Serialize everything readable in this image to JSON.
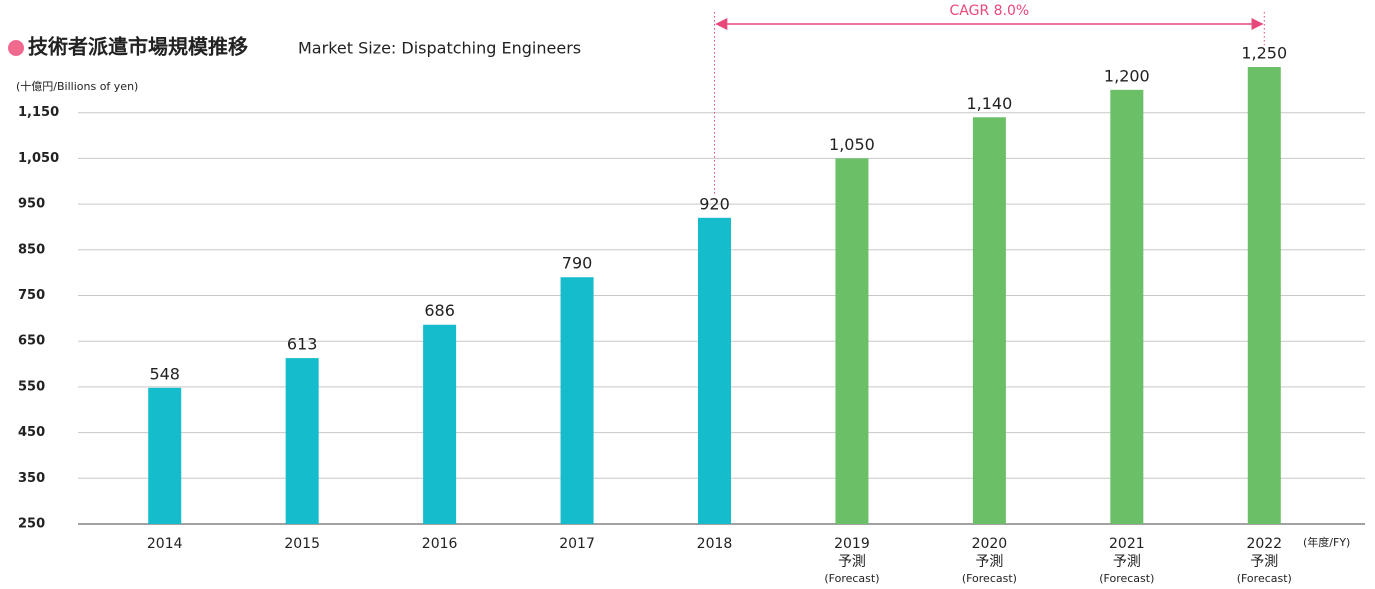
{
  "chart_data": {
    "type": "bar",
    "title": "技術者派遣市場規模推移",
    "subtitle": "Market Size: Dispatching Engineers",
    "y_axis_label": "(十億円/Billions of yen)",
    "x_axis_label": "(年度/FY)",
    "annotation": "CAGR 8.0%",
    "categories": [
      "2014",
      "2015",
      "2016",
      "2017",
      "2018",
      "2019",
      "2020",
      "2021",
      "2022"
    ],
    "forecast_labels": [
      null,
      null,
      null,
      null,
      null,
      "予測",
      "予測",
      "予測",
      "予測"
    ],
    "forecast_sublabels": [
      null,
      null,
      null,
      null,
      null,
      "(Forecast)",
      "(Forecast)",
      "(Forecast)",
      "(Forecast)"
    ],
    "values": [
      548,
      613,
      686,
      790,
      920,
      1050,
      1140,
      1200,
      1250
    ],
    "value_labels": [
      "548",
      "613",
      "686",
      "790",
      "920",
      "1,050",
      "1,140",
      "1,200",
      "1,250"
    ],
    "colors": [
      "#15bccb",
      "#15bccb",
      "#15bccb",
      "#15bccb",
      "#15bccb",
      "#6bc067",
      "#6bc067",
      "#6bc067",
      "#6bc067"
    ],
    "ylim": [
      250,
      1250
    ],
    "yticks": [
      250,
      350,
      450,
      550,
      650,
      750,
      850,
      950,
      {
        "value": 1050,
        "label": "1,050"
      },
      {
        "value": 1150,
        "label": "1,150"
      }
    ],
    "grid": true
  }
}
